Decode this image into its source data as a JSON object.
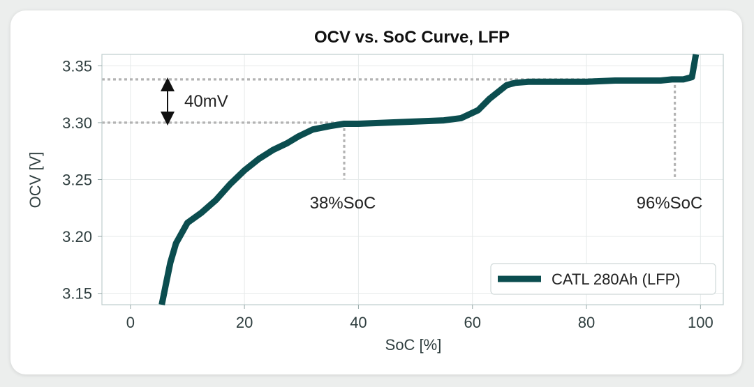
{
  "chart_data": {
    "type": "line",
    "title": "OCV vs. SoC Curve, LFP",
    "xlabel": "SoC [%]",
    "ylabel": "OCV [V]",
    "xlim": [
      -5,
      104
    ],
    "ylim": [
      3.14,
      3.36
    ],
    "xticks": [
      0,
      20,
      40,
      60,
      80,
      100
    ],
    "yticks": [
      3.15,
      3.2,
      3.25,
      3.3,
      3.35
    ],
    "xtick_labels": [
      "0",
      "20",
      "40",
      "60",
      "80",
      "100"
    ],
    "ytick_labels": [
      "3.15",
      "3.20",
      "3.25",
      "3.30",
      "3.35"
    ],
    "grid": true,
    "legend_position": "bottom-right",
    "series": [
      {
        "name": "CATL 280Ah (LFP)",
        "color": "#0b4d4f",
        "x": [
          5.5,
          6.3,
          7.0,
          8.0,
          10.0,
          12.5,
          15.0,
          17.5,
          20.0,
          22.5,
          25.0,
          27.5,
          29.5,
          32.0,
          35.0,
          37.5,
          40.0,
          45.0,
          50.0,
          55.0,
          58.0,
          61.0,
          63.0,
          66.0,
          67.5,
          70.0,
          75.0,
          80.0,
          85.0,
          90.0,
          93.0,
          95.0,
          97.0,
          98.5,
          99.2
        ],
        "y": [
          3.14,
          3.16,
          3.177,
          3.194,
          3.212,
          3.221,
          3.232,
          3.246,
          3.258,
          3.268,
          3.276,
          3.282,
          3.288,
          3.294,
          3.297,
          3.299,
          3.299,
          3.3,
          3.301,
          3.302,
          3.304,
          3.311,
          3.321,
          3.333,
          3.335,
          3.336,
          3.336,
          3.336,
          3.337,
          3.337,
          3.337,
          3.338,
          3.338,
          3.34,
          3.36
        ]
      }
    ],
    "reference_lines": {
      "h_levels": [
        3.3,
        3.338
      ],
      "v_positions": [
        37.5,
        95.5
      ]
    },
    "annotations": {
      "delta_label": "40mV",
      "soc_low_label": "38%SoC",
      "soc_high_label": "96%SoC"
    }
  }
}
